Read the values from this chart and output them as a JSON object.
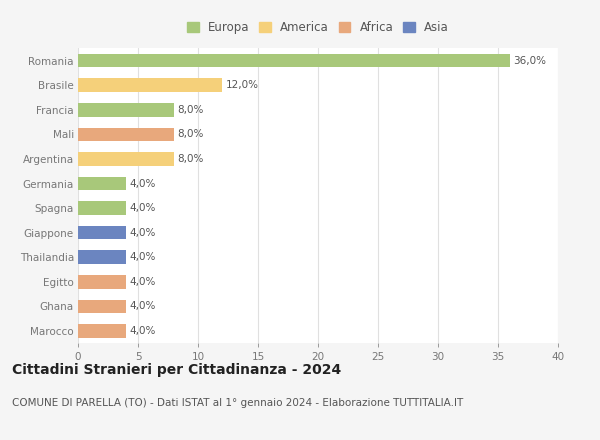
{
  "categories": [
    "Romania",
    "Brasile",
    "Francia",
    "Mali",
    "Argentina",
    "Germania",
    "Spagna",
    "Giappone",
    "Thailandia",
    "Egitto",
    "Ghana",
    "Marocco"
  ],
  "values": [
    36.0,
    12.0,
    8.0,
    8.0,
    8.0,
    4.0,
    4.0,
    4.0,
    4.0,
    4.0,
    4.0,
    4.0
  ],
  "bar_colors": [
    "#a8c87a",
    "#f5d07a",
    "#a8c87a",
    "#e8a87c",
    "#f5d07a",
    "#a8c87a",
    "#a8c87a",
    "#6b85c0",
    "#6b85c0",
    "#e8a87c",
    "#e8a87c",
    "#e8a87c"
  ],
  "label_texts": [
    "36,0%",
    "12,0%",
    "8,0%",
    "8,0%",
    "8,0%",
    "4,0%",
    "4,0%",
    "4,0%",
    "4,0%",
    "4,0%",
    "4,0%",
    "4,0%"
  ],
  "legend_labels": [
    "Europa",
    "America",
    "Africa",
    "Asia"
  ],
  "legend_colors": [
    "#a8c87a",
    "#f5d07a",
    "#e8a87c",
    "#6b85c0"
  ],
  "title": "Cittadini Stranieri per Cittadinanza - 2024",
  "subtitle": "COMUNE DI PARELLA (TO) - Dati ISTAT al 1° gennaio 2024 - Elaborazione TUTTITALIA.IT",
  "xlim": [
    0,
    40
  ],
  "xticks": [
    0,
    5,
    10,
    15,
    20,
    25,
    30,
    35,
    40
  ],
  "plot_bg": "#ffffff",
  "fig_bg": "#f5f5f5",
  "bar_height": 0.55,
  "title_fontsize": 10,
  "subtitle_fontsize": 7.5,
  "label_fontsize": 7.5,
  "tick_fontsize": 7.5,
  "legend_fontsize": 8.5
}
